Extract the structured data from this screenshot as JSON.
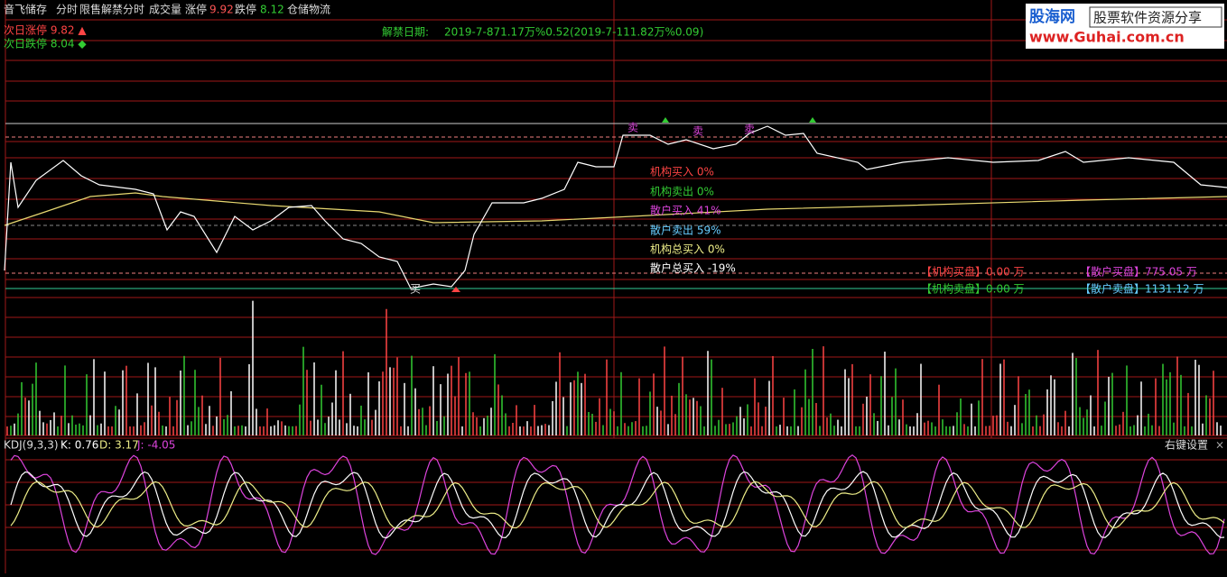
{
  "header": {
    "stock": "音飞储存",
    "period": "分时",
    "indicator": "限售解禁分时",
    "volume_label": "成交量",
    "limit_up_label": "涨停",
    "limit_up": "9.92",
    "limit_down_label": "跌停",
    "limit_down": "8.12",
    "sector": "仓储物流"
  },
  "next_day": {
    "up": "次日涨停 9.82 ▲",
    "down": "次日跌停 8.04 ◆"
  },
  "unlock": {
    "label": "解禁日期:",
    "text": "2019-7-871.17万%0.52(2019-7-111.82万%0.09)"
  },
  "logo": {
    "name": "股海网",
    "slogan": "股票软件资源分享",
    "url": "www.Guhai.com.cn"
  },
  "stats": [
    "机构买入 0%",
    "机构卖出 0%",
    "散户买入 41%",
    "散户卖出 59%",
    "机构总买入 0%",
    "散户总买入 -19%"
  ],
  "orders": {
    "inst_buy": "【机构买盘】0.00 万",
    "retail_buy": "【散户买盘】775.05 万",
    "inst_sell": "【机构卖盘】0.00 万",
    "retail_sell": "【散户卖盘】1131.12 万"
  },
  "signals": {
    "sell": "卖",
    "buy": "买"
  },
  "kdj": {
    "name": "KDJ(9,3,3)",
    "k": "K: 0.76",
    "d": "D: 3.17",
    "j": "J: -4.05",
    "settings": "右键设置",
    "close": "×"
  }
}
